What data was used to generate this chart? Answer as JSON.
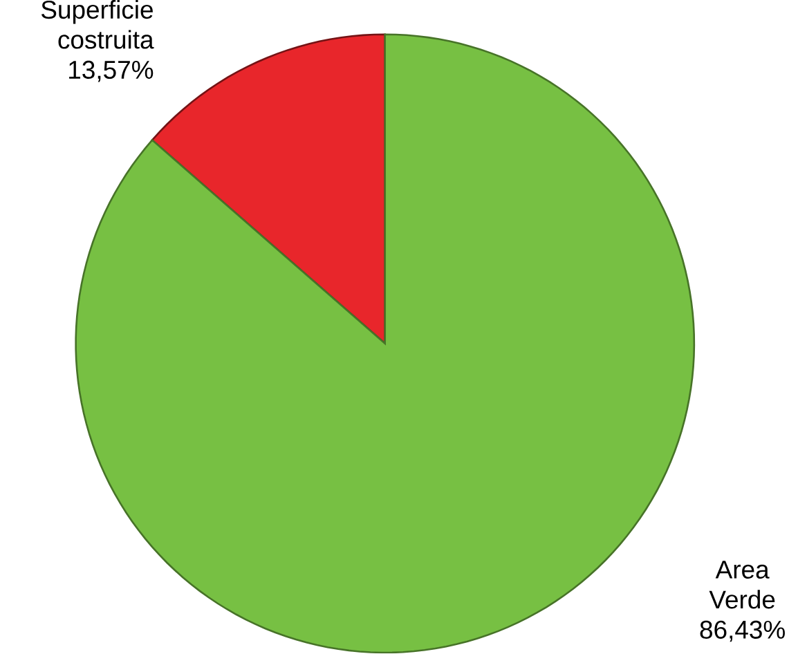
{
  "chart_data": {
    "type": "pie",
    "categories": [
      "Superficie costruita",
      "Area Verde"
    ],
    "values": [
      13.57,
      86.43
    ],
    "value_labels": [
      "13,57%",
      "86,43%"
    ],
    "colors": [
      "#e8262b",
      "#77c043"
    ]
  }
}
